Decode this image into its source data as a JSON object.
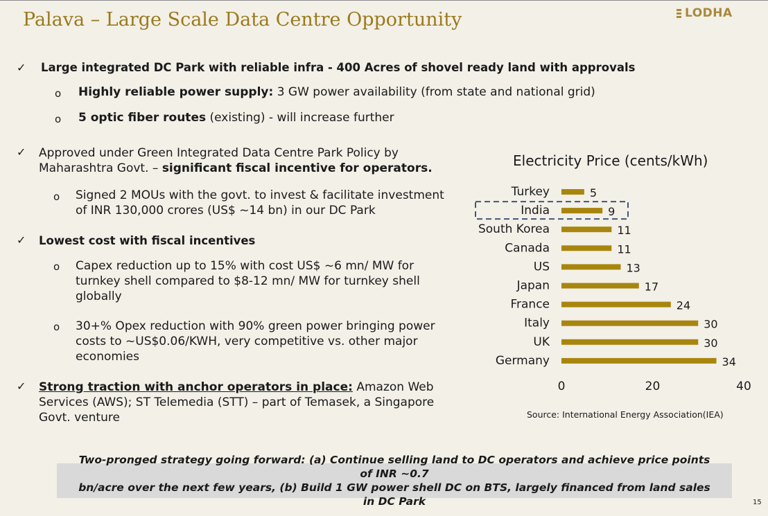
{
  "slide": {
    "title": "Palava – Large Scale Data Centre Opportunity",
    "logo": "LODHA",
    "page_number": "15"
  },
  "bullets": {
    "check_glyph": "✓",
    "circle_glyph": "o",
    "b1": {
      "text": "Large integrated DC Park with reliable infra - 400 Acres of shovel ready land with approvals",
      "sub1_bold": "Highly reliable power supply:",
      "sub1_text": " 3 GW power availability (from state and national grid)",
      "sub2_bold": "5 optic fiber routes",
      "sub2_text": " (existing) - will increase further"
    },
    "b2": {
      "line1": "Approved under Green Integrated Data Centre Park Policy by",
      "line2_plain": "Maharashtra Govt. – ",
      "line2_bold": "significant fiscal incentive for operators.",
      "sub1_line1": "Signed 2 MOUs with the govt. to invest & facilitate investment",
      "sub1_line2": "of INR 130,000 crores (US$ ~14 bn) in our DC Park"
    },
    "b3": {
      "text": "Lowest cost with fiscal incentives",
      "sub1_line1": "Capex reduction up to 15% with cost US$ ~6 mn/ MW for",
      "sub1_line2": "turnkey shell compared to $8-12 mn/ MW for turnkey shell",
      "sub1_line3": "globally",
      "sub2_line1": "30+% Opex reduction with 90% green power bringing power",
      "sub2_line2": "costs to ~US$0.06/KWH, very competitive vs. other major",
      "sub2_line3": "economies"
    },
    "b4": {
      "line1_bold": "Strong traction with anchor operators in place:",
      "line1_text": " Amazon Web",
      "line2": "Services (AWS); ST Telemedia (STT) –  part of Temasek, a Singapore",
      "line3": "Govt. venture"
    }
  },
  "chart_data": {
    "type": "bar",
    "orientation": "horizontal",
    "title": "Electricity Price (cents/kWh)",
    "categories": [
      "Turkey",
      "India",
      "South Korea",
      "Canada",
      "US",
      "Japan",
      "France",
      "Italy",
      "UK",
      "Germany"
    ],
    "values": [
      5,
      9,
      11,
      11,
      13,
      17,
      24,
      30,
      30,
      34
    ],
    "xlim": [
      0,
      40
    ],
    "xticks": [
      0,
      20,
      40
    ],
    "highlight_category": "India",
    "bar_color": "#a8860e",
    "highlight_border_color": "#3f5677",
    "source": "Source: International Energy Association(IEA)"
  },
  "footer": {
    "box_line1": "Two-pronged strategy going forward: (a) Continue selling land to DC operators and achieve price points of INR ~0.7",
    "box_line2": "bn/acre over the next few years, (b) Build 1 GW power shell DC on BTS, largely financed from land sales in DC Park"
  }
}
